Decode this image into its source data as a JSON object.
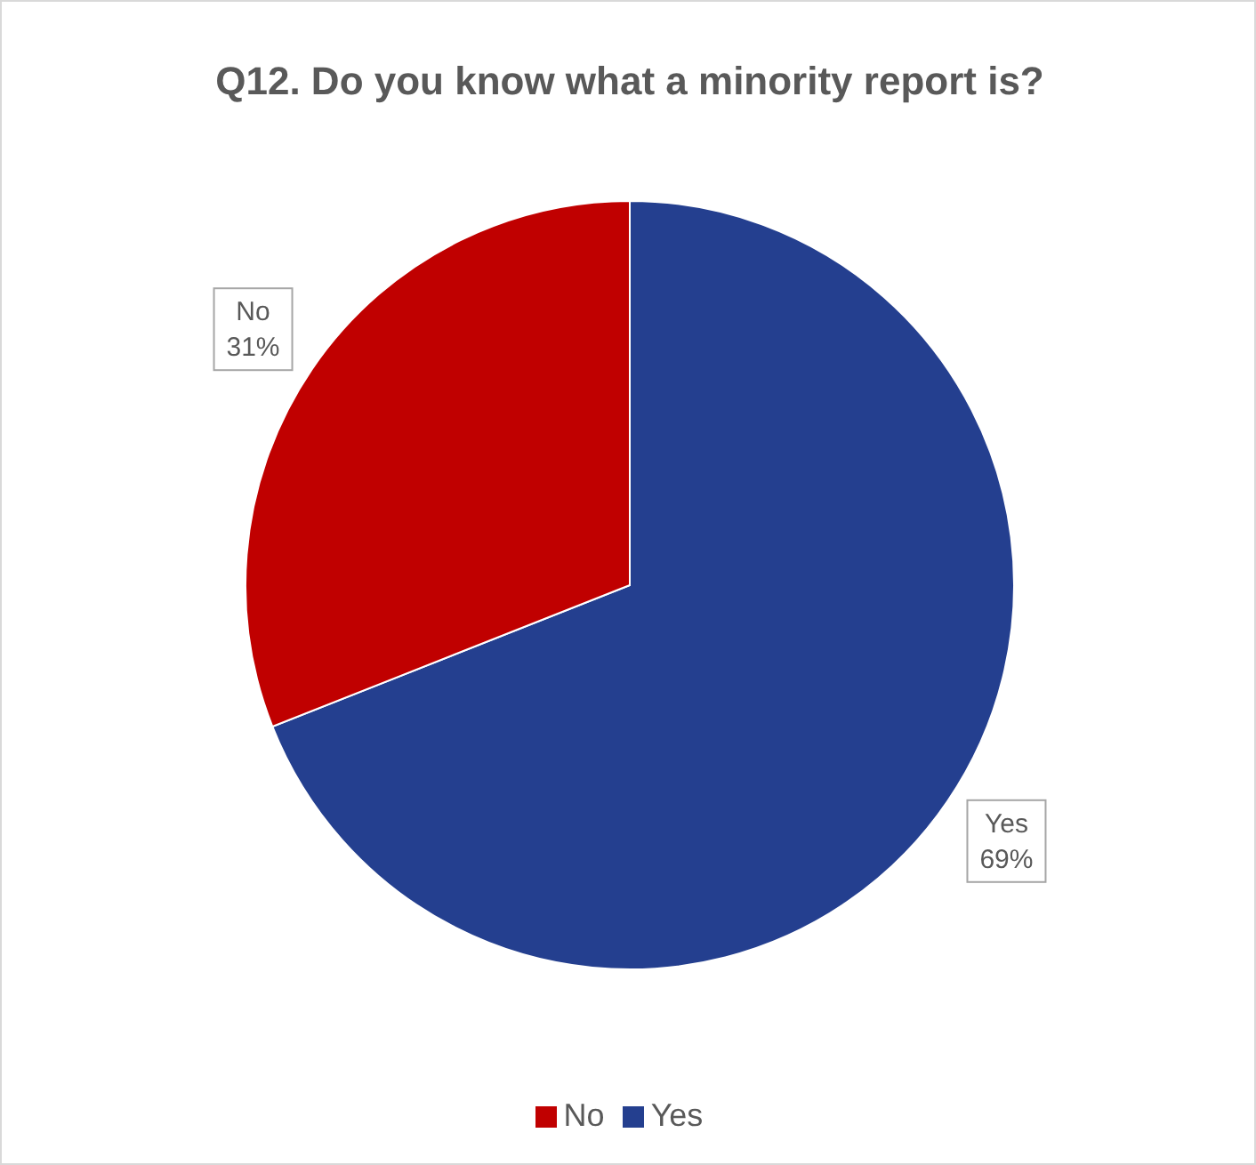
{
  "chart_data": {
    "type": "pie",
    "title": "Q12. Do you know what a minority report is?",
    "categories": [
      "Yes",
      "No"
    ],
    "values": [
      69,
      31
    ],
    "colors": [
      "#243f8f",
      "#c00000"
    ],
    "value_labels": [
      "69%",
      "31%"
    ],
    "legend": "bottom"
  }
}
